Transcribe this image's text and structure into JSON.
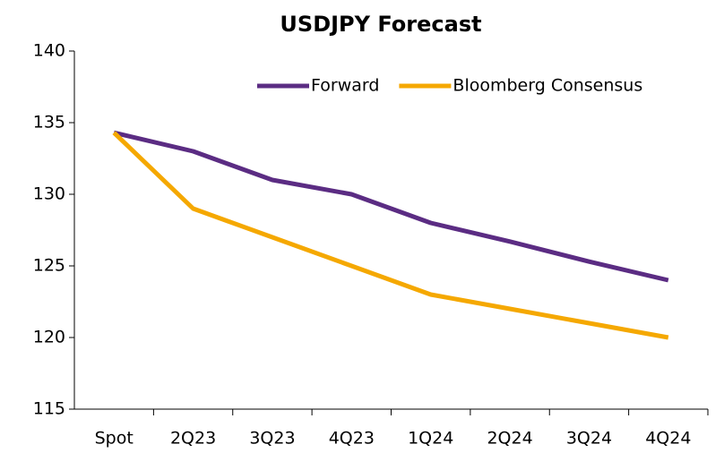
{
  "chart_data": {
    "type": "line",
    "title": "USDJPY Forecast",
    "categories": [
      "Spot",
      "2Q23",
      "3Q23",
      "4Q23",
      "1Q24",
      "2Q24",
      "3Q24",
      "4Q24"
    ],
    "series": [
      {
        "name": "Forward",
        "color": "#5b2c83",
        "values": [
          134.3,
          133,
          131,
          130,
          128,
          126.7,
          125.3,
          124
        ]
      },
      {
        "name": "Bloomberg Consensus",
        "color": "#f5a800",
        "values": [
          134.3,
          129,
          127,
          125,
          123,
          122,
          121,
          120
        ]
      }
    ],
    "ylim": [
      115,
      140
    ],
    "yticks": [
      115,
      120,
      125,
      130,
      135,
      140
    ],
    "grid": false,
    "legend": "top-right"
  }
}
